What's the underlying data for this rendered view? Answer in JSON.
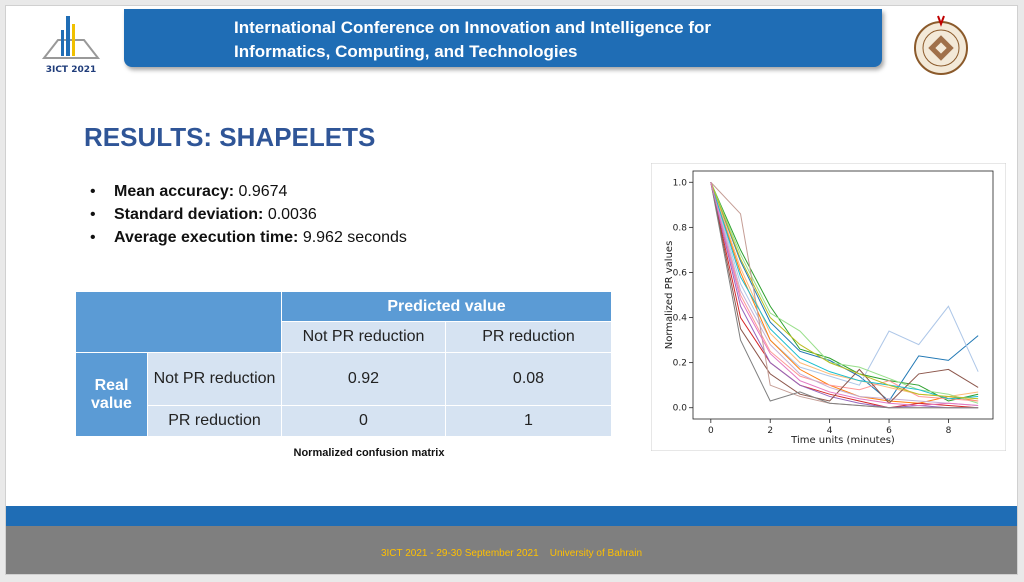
{
  "header": {
    "title_line1": "International Conference on Innovation and Intelligence for",
    "title_line2": "Informatics, Computing, and Technologies",
    "logo_left_text": "3ICT 2021"
  },
  "slide": {
    "title": "RESULTS: SHAPELETS",
    "bullets": [
      {
        "label": "Mean accuracy:",
        "value": "0.9674"
      },
      {
        "label": "Standard deviation:",
        "value": "0.0036"
      },
      {
        "label": "Average execution time:",
        "value": "9.962 seconds"
      }
    ]
  },
  "confusion_matrix": {
    "predicted_header": "Predicted value",
    "col_headers": [
      "Not PR reduction",
      "PR reduction"
    ],
    "real_header": "Real value",
    "row_headers": [
      "Not PR reduction",
      "PR reduction"
    ],
    "cells": [
      [
        "0.92",
        "0.08"
      ],
      [
        "0",
        "1"
      ]
    ],
    "caption": "Normalized confusion matrix"
  },
  "chart_data": {
    "type": "line",
    "xlabel": "Time units (minutes)",
    "ylabel": "Normalized PR values",
    "xlim": [
      -0.6,
      9.5
    ],
    "ylim": [
      -0.05,
      1.05
    ],
    "xticks": [
      "0",
      "2",
      "4",
      "6",
      "8"
    ],
    "yticks": [
      "0.0",
      "0.2",
      "0.4",
      "0.6",
      "0.8",
      "1.0"
    ],
    "x": [
      0,
      1,
      2,
      3,
      4,
      5,
      6,
      7,
      8,
      9
    ],
    "series": [
      {
        "color": "#1f77b4",
        "values": [
          1.0,
          0.65,
          0.38,
          0.25,
          0.21,
          0.14,
          0.03,
          0.23,
          0.21,
          0.32
        ]
      },
      {
        "color": "#aec7e8",
        "values": [
          1.0,
          0.55,
          0.3,
          0.18,
          0.14,
          0.1,
          0.34,
          0.28,
          0.45,
          0.16
        ]
      },
      {
        "color": "#ff7f0e",
        "values": [
          1.0,
          0.6,
          0.3,
          0.17,
          0.1,
          0.05,
          0.03,
          0.02,
          0.05,
          0.03
        ]
      },
      {
        "color": "#ffbb78",
        "values": [
          1.0,
          0.62,
          0.33,
          0.2,
          0.15,
          0.12,
          0.09,
          0.06,
          0.05,
          0.07
        ]
      },
      {
        "color": "#2ca02c",
        "values": [
          1.0,
          0.7,
          0.45,
          0.26,
          0.22,
          0.15,
          0.12,
          0.1,
          0.03,
          0.06
        ]
      },
      {
        "color": "#98df8a",
        "values": [
          1.0,
          0.68,
          0.42,
          0.34,
          0.2,
          0.18,
          0.13,
          0.08,
          0.06,
          0.02
        ]
      },
      {
        "color": "#d62728",
        "values": [
          1.0,
          0.4,
          0.2,
          0.1,
          0.06,
          0.03,
          0.0,
          0.02,
          0.01,
          0.0
        ]
      },
      {
        "color": "#ff9896",
        "values": [
          1.0,
          0.5,
          0.25,
          0.14,
          0.1,
          0.08,
          0.12,
          0.05,
          0.04,
          0.03
        ]
      },
      {
        "color": "#9467bd",
        "values": [
          1.0,
          0.45,
          0.2,
          0.1,
          0.05,
          0.02,
          0.0,
          0.01,
          0.0,
          0.0
        ]
      },
      {
        "color": "#c5b0d5",
        "values": [
          1.0,
          0.52,
          0.28,
          0.15,
          0.09,
          0.05,
          0.04,
          0.03,
          0.02,
          0.01
        ]
      },
      {
        "color": "#8c564b",
        "values": [
          1.0,
          0.35,
          0.15,
          0.06,
          0.03,
          0.17,
          0.02,
          0.15,
          0.17,
          0.09
        ]
      },
      {
        "color": "#c49c94",
        "values": [
          1.0,
          0.86,
          0.1,
          0.05,
          0.02,
          0.01,
          0.0,
          0.0,
          0.0,
          0.0
        ]
      },
      {
        "color": "#7f7f7f",
        "values": [
          1.0,
          0.3,
          0.03,
          0.07,
          0.02,
          0.01,
          0.0,
          0.0,
          0.0,
          0.0
        ]
      },
      {
        "color": "#17becf",
        "values": [
          1.0,
          0.58,
          0.35,
          0.22,
          0.16,
          0.12,
          0.1,
          0.08,
          0.04,
          0.05
        ]
      },
      {
        "color": "#bcbd22",
        "values": [
          1.0,
          0.66,
          0.4,
          0.28,
          0.2,
          0.15,
          0.1,
          0.06,
          0.05,
          0.04
        ]
      },
      {
        "color": "#e377c2",
        "values": [
          1.0,
          0.48,
          0.24,
          0.12,
          0.07,
          0.04,
          0.02,
          0.01,
          0.02,
          0.01
        ]
      }
    ]
  },
  "footer": {
    "text": "3ICT 2021 - 29-30 September 2021    University of Bahrain"
  },
  "colors": {
    "header_blue": "#1f6db5",
    "title_blue": "#2f5597",
    "table_dark": "#5b9bd5",
    "table_light": "#d6e3f2",
    "footer_gray": "#7f7f7f",
    "footer_text": "#ffc000"
  }
}
